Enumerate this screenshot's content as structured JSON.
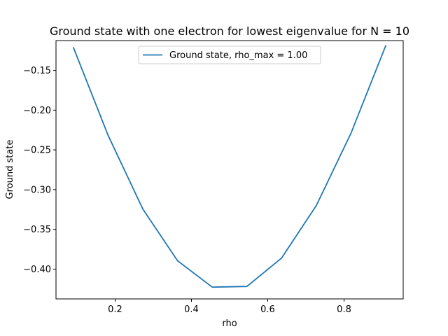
{
  "chart_data": {
    "type": "line",
    "title": "Ground state with one electron for lowest eigenvalue for N = 10",
    "xlabel": "rho",
    "ylabel": "Ground state",
    "xlim": [
      0.045,
      0.955
    ],
    "ylim": [
      -0.4375,
      -0.1125
    ],
    "xticks": [
      0.2,
      0.4,
      0.6,
      0.8
    ],
    "xtick_labels": [
      "0.2",
      "0.4",
      "0.6",
      "0.8"
    ],
    "yticks": [
      -0.4,
      -0.35,
      -0.3,
      -0.25,
      -0.2,
      -0.15
    ],
    "ytick_labels": [
      "−0.40",
      "−0.35",
      "−0.30",
      "−0.25",
      "−0.20",
      "−0.15"
    ],
    "grid": false,
    "legend_position": "upper center",
    "series": [
      {
        "name": "Ground state, rho_max = 1.00",
        "color": "#1f77b4",
        "x": [
          0.0909,
          0.1818,
          0.2727,
          0.3636,
          0.4545,
          0.5455,
          0.6364,
          0.7273,
          0.8182,
          0.9091
        ],
        "y": [
          -0.1215,
          -0.232,
          -0.3245,
          -0.3895,
          -0.4227,
          -0.4218,
          -0.386,
          -0.32,
          -0.229,
          -0.119
        ]
      }
    ]
  }
}
